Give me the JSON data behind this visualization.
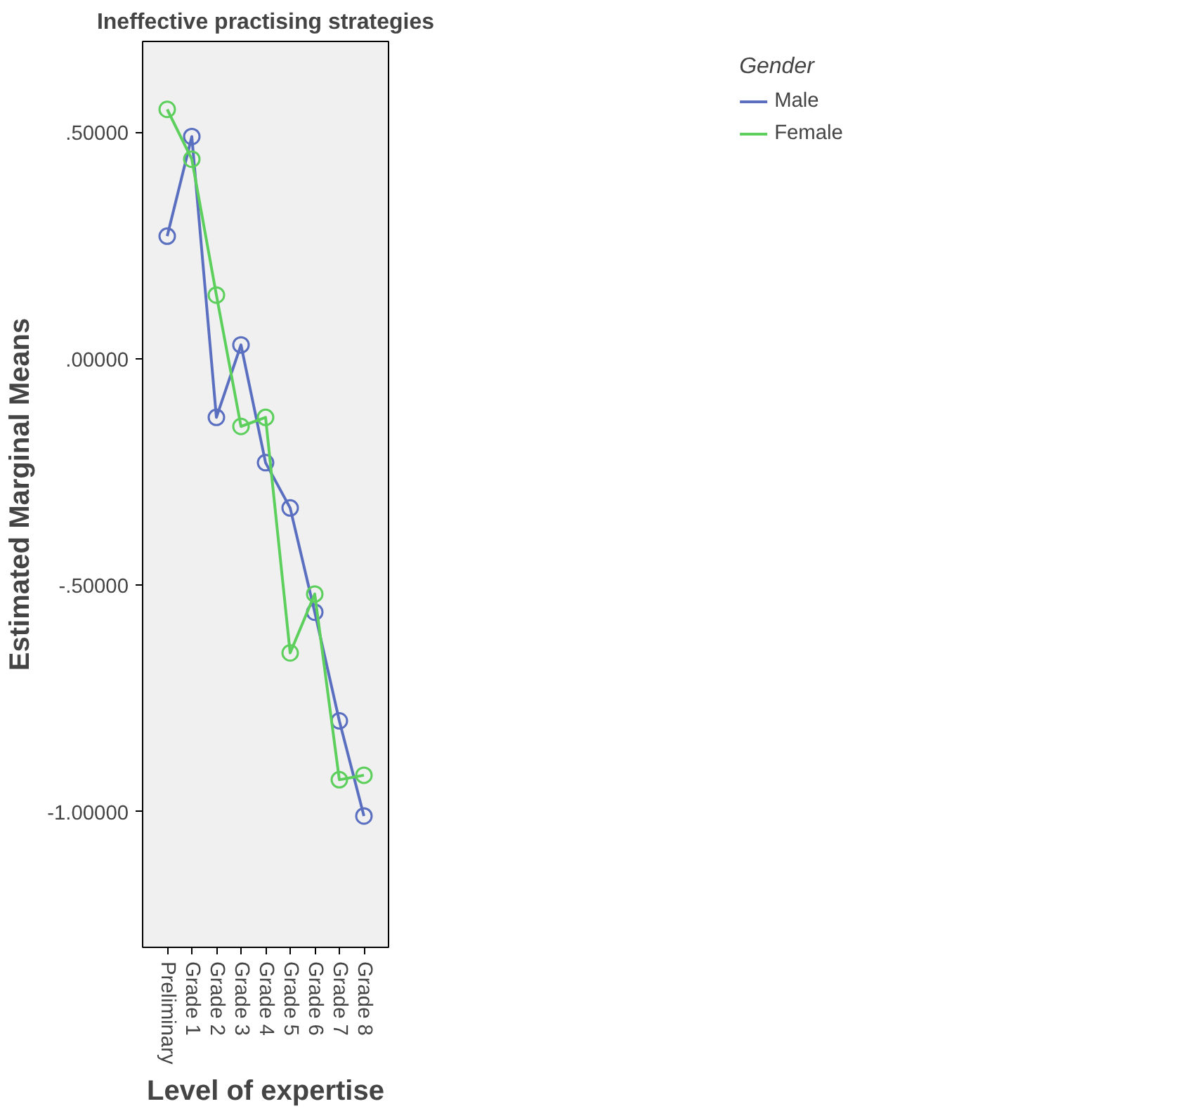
{
  "chart_data": {
    "type": "line",
    "title": "Ineffective practising strategies",
    "xlabel": "Level of expertise",
    "ylabel": "Estimated Marginal Means",
    "legend_title": "Gender",
    "categories": [
      "Preliminary",
      "Grade 1",
      "Grade 2",
      "Grade 3",
      "Grade 4",
      "Grade 5",
      "Grade 6",
      "Grade 7",
      "Grade 8"
    ],
    "series": [
      {
        "name": "Male",
        "color": "#5a6fc0",
        "values": [
          0.27,
          0.49,
          -0.13,
          0.03,
          -0.23,
          -0.33,
          -0.56,
          -0.8,
          -1.01
        ]
      },
      {
        "name": "Female",
        "color": "#5ccf5c",
        "values": [
          0.55,
          0.44,
          0.14,
          -0.15,
          -0.13,
          -0.65,
          -0.52,
          -0.93,
          -0.92
        ]
      }
    ],
    "ylim": [
      -1.3,
      0.7
    ],
    "yticks": [
      {
        "value": -1,
        "label": "-1.00000"
      },
      {
        "value": -0.5,
        "label": "-.50000"
      },
      {
        "value": 0,
        "label": ".00000"
      },
      {
        "value": 0.5,
        "label": ".50000"
      }
    ],
    "grid": false,
    "legend": "top right",
    "marker": "circle",
    "line_style": "solid"
  }
}
